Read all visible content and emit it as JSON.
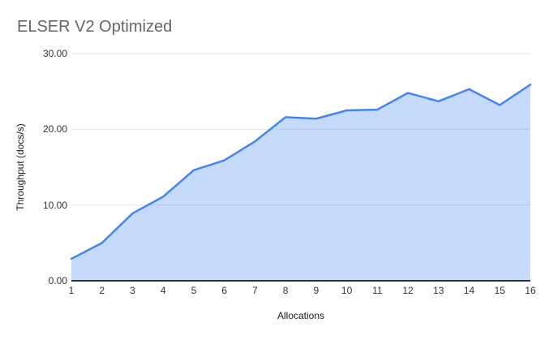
{
  "chart": {
    "title": "ELSER V2 Optimized",
    "x_axis": {
      "title": "Allocations"
    },
    "y_axis": {
      "title": "Throughput (docs/s)",
      "tick_labels": [
        "30.00",
        "20.00",
        "10.00",
        "0.00"
      ]
    },
    "colors": {
      "line": "#4285f4",
      "fill_opacity": 0.3,
      "gridline": "#e6e6e6",
      "axis_line": "#333333",
      "title_text": "#666666",
      "tick_text": "#333333"
    }
  },
  "chart_data": {
    "type": "area",
    "title": "ELSER V2 Optimized",
    "xlabel": "Allocations",
    "ylabel": "Throughput (docs/s)",
    "categories": [
      1,
      2,
      3,
      4,
      5,
      6,
      7,
      8,
      9,
      10,
      11,
      12,
      13,
      14,
      15,
      16
    ],
    "values": [
      2.9,
      5.0,
      8.9,
      11.1,
      14.6,
      15.9,
      18.4,
      21.6,
      21.4,
      22.5,
      22.6,
      24.8,
      23.7,
      25.3,
      23.2,
      25.9
    ],
    "ylim": [
      0,
      30
    ],
    "y_tick_interval": 10,
    "grid": true,
    "legend": "none"
  }
}
